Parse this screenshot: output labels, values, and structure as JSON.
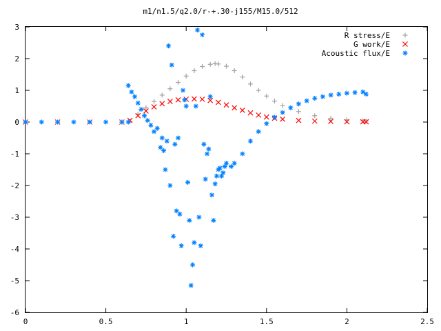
{
  "chart_data": {
    "type": "scatter",
    "title": "m1/n1.5/q2.0/r-+.30-j155/M15.0/512",
    "xlabel": "",
    "ylabel": "",
    "xlim": [
      0,
      2.5
    ],
    "ylim": [
      -6,
      3
    ],
    "x_ticks": [
      0,
      0.5,
      1,
      1.5,
      2,
      2.5
    ],
    "x_tick_labels": [
      "0",
      "0.5",
      "1",
      "1.5",
      "2",
      "2.5"
    ],
    "y_ticks": [
      -6,
      -5,
      -4,
      -3,
      -2,
      -1,
      0,
      1,
      2,
      3
    ],
    "y_tick_labels": [
      "-6",
      "-5",
      "-4",
      "-3",
      "-2",
      "-1",
      "0",
      "1",
      "2",
      "3"
    ],
    "grid": false,
    "legend_position": "top-right",
    "series": [
      {
        "name": "R stress/E",
        "marker": "plus",
        "color": "#a0a0a0",
        "x": [
          0,
          0.2,
          0.4,
          0.6,
          0.65,
          0.7,
          0.75,
          0.8,
          0.85,
          0.9,
          0.95,
          1.0,
          1.05,
          1.1,
          1.15,
          1.18,
          1.2,
          1.25,
          1.3,
          1.35,
          1.4,
          1.45,
          1.5,
          1.55,
          1.6,
          1.7,
          1.8,
          1.9,
          2.0,
          2.1,
          2.12
        ],
        "y": [
          0,
          0,
          0,
          0,
          0.02,
          0.25,
          0.45,
          0.65,
          0.85,
          1.05,
          1.25,
          1.45,
          1.62,
          1.75,
          1.82,
          1.84,
          1.83,
          1.76,
          1.62,
          1.42,
          1.2,
          1.0,
          0.82,
          0.66,
          0.52,
          0.33,
          0.2,
          0.12,
          0.07,
          0.04,
          0.03
        ]
      },
      {
        "name": "G work/E",
        "marker": "cross",
        "color": "#ff0000",
        "x": [
          0,
          0.2,
          0.4,
          0.6,
          0.65,
          0.7,
          0.75,
          0.8,
          0.85,
          0.9,
          0.95,
          1.0,
          1.05,
          1.1,
          1.15,
          1.2,
          1.25,
          1.3,
          1.35,
          1.4,
          1.45,
          1.5,
          1.55,
          1.6,
          1.7,
          1.8,
          1.9,
          2.0,
          2.1,
          2.12
        ],
        "y": [
          0,
          0,
          0,
          0,
          0.05,
          0.2,
          0.35,
          0.48,
          0.58,
          0.65,
          0.7,
          0.72,
          0.73,
          0.72,
          0.68,
          0.62,
          0.54,
          0.45,
          0.37,
          0.29,
          0.22,
          0.16,
          0.12,
          0.09,
          0.05,
          0.03,
          0.02,
          0.01,
          0.01,
          0.01
        ]
      },
      {
        "name": "Acoustic flux/E",
        "marker": "star",
        "color": "#0080ff",
        "x": [
          0,
          0.1,
          0.2,
          0.3,
          0.4,
          0.5,
          0.6,
          0.64,
          0.64,
          0.66,
          0.68,
          0.7,
          0.72,
          0.74,
          0.76,
          0.78,
          0.8,
          0.82,
          0.84,
          0.85,
          0.86,
          0.87,
          0.88,
          0.89,
          0.9,
          0.91,
          0.92,
          0.93,
          0.94,
          0.95,
          0.96,
          0.97,
          0.98,
          0.99,
          1.0,
          1.01,
          1.02,
          1.03,
          1.04,
          1.05,
          1.06,
          1.07,
          1.08,
          1.09,
          1.1,
          1.11,
          1.12,
          1.13,
          1.14,
          1.15,
          1.16,
          1.17,
          1.18,
          1.19,
          1.2,
          1.21,
          1.22,
          1.23,
          1.24,
          1.25,
          1.28,
          1.3,
          1.35,
          1.4,
          1.45,
          1.5,
          1.55,
          1.6,
          1.65,
          1.7,
          1.75,
          1.8,
          1.85,
          1.9,
          1.95,
          2.0,
          2.05,
          2.1,
          2.12
        ],
        "y": [
          0,
          0,
          0,
          0,
          0,
          0,
          0,
          0,
          1.15,
          0.95,
          0.8,
          0.6,
          0.4,
          0.2,
          0.05,
          -0.1,
          -0.3,
          -0.2,
          -0.8,
          -0.5,
          -0.9,
          -1.5,
          -0.6,
          2.4,
          -2.0,
          1.8,
          -3.6,
          -0.7,
          -2.8,
          -0.5,
          -2.9,
          -3.9,
          1.0,
          0.7,
          0.5,
          -1.9,
          -3.1,
          -5.15,
          -4.5,
          -3.8,
          0.5,
          2.9,
          -3.0,
          -3.9,
          2.75,
          -0.7,
          -1.8,
          -1.0,
          -0.85,
          0.8,
          -2.3,
          -3.1,
          -1.95,
          -1.7,
          -1.5,
          -1.45,
          -1.7,
          -1.6,
          -1.4,
          -1.3,
          -1.4,
          -1.3,
          -1.0,
          -0.6,
          -0.3,
          -0.05,
          0.15,
          0.3,
          0.45,
          0.57,
          0.67,
          0.75,
          0.8,
          0.85,
          0.88,
          0.91,
          0.93,
          0.95,
          0.88
        ]
      }
    ]
  }
}
